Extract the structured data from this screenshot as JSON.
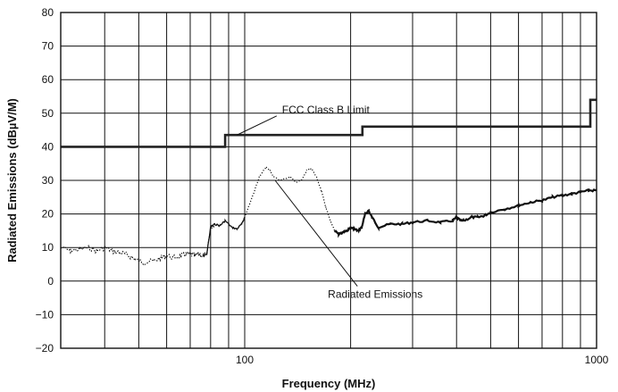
{
  "chart_data": {
    "type": "line",
    "xlabel": "Frequency (MHz)",
    "ylabel": "Radiated Emissions (dBµV/M)",
    "xscale": "log",
    "xlim": [
      30,
      1000
    ],
    "ylim": [
      -20,
      80
    ],
    "xticks": [
      {
        "value": 100,
        "label": "100"
      },
      {
        "value": 1000,
        "label": "1000"
      }
    ],
    "yticks": [
      -20,
      -10,
      0,
      10,
      20,
      30,
      40,
      50,
      60,
      70,
      80
    ],
    "grid": true,
    "series": [
      {
        "name": "FCC Class B Limit",
        "style": "step",
        "color": "#222222",
        "x": [
          30,
          88,
          88,
          216,
          216,
          960,
          960,
          1000
        ],
        "y": [
          40,
          40,
          43.5,
          43.5,
          46,
          46,
          54,
          54
        ]
      },
      {
        "name": "Radiated Emissions",
        "style": "trace",
        "color": "#111111",
        "x": [
          30,
          32,
          34,
          36,
          38,
          40,
          42,
          44,
          46,
          48,
          50,
          52,
          55,
          58,
          60,
          63,
          66,
          68,
          70,
          72,
          74,
          76,
          78,
          80,
          82,
          85,
          88,
          92,
          95,
          98,
          100,
          105,
          110,
          115,
          118,
          120,
          125,
          130,
          135,
          140,
          145,
          150,
          155,
          160,
          165,
          170,
          175,
          180,
          185,
          190,
          195,
          200,
          205,
          210,
          215,
          220,
          225,
          230,
          240,
          260,
          280,
          300,
          330,
          360,
          390,
          400,
          410,
          420,
          440,
          460,
          480,
          500,
          550,
          600,
          650,
          700,
          750,
          800,
          850,
          900,
          950,
          1000
        ],
        "y": [
          10,
          9,
          9.5,
          10,
          9,
          10,
          9,
          8.5,
          8,
          7,
          6,
          5.5,
          6,
          7,
          7.5,
          7,
          7.5,
          8,
          8,
          7.5,
          8,
          7.5,
          8,
          16,
          17,
          16.5,
          18,
          16,
          15.5,
          17,
          19,
          25,
          31,
          34,
          33,
          31.5,
          30,
          30.5,
          31,
          29.5,
          30,
          33,
          33.5,
          31,
          27,
          22,
          18,
          15,
          14,
          14.5,
          15,
          16,
          15.5,
          15,
          16,
          20,
          21,
          19,
          16,
          17,
          17,
          17.5,
          18,
          17.5,
          18,
          19,
          18,
          18,
          19,
          19,
          19.5,
          20.5,
          21.5,
          22.5,
          23.5,
          24,
          25,
          25.5,
          26,
          26.5,
          27,
          27
        ]
      }
    ],
    "annotations": [
      {
        "text": "FCC Class B Limit",
        "x": 170,
        "y": 50,
        "arrow_to_x": 95,
        "arrow_to_y": 43.5
      },
      {
        "text": "Radiated Emissions",
        "x": 235,
        "y": -5,
        "arrow_to_x": 122,
        "arrow_to_y": 30
      }
    ]
  }
}
